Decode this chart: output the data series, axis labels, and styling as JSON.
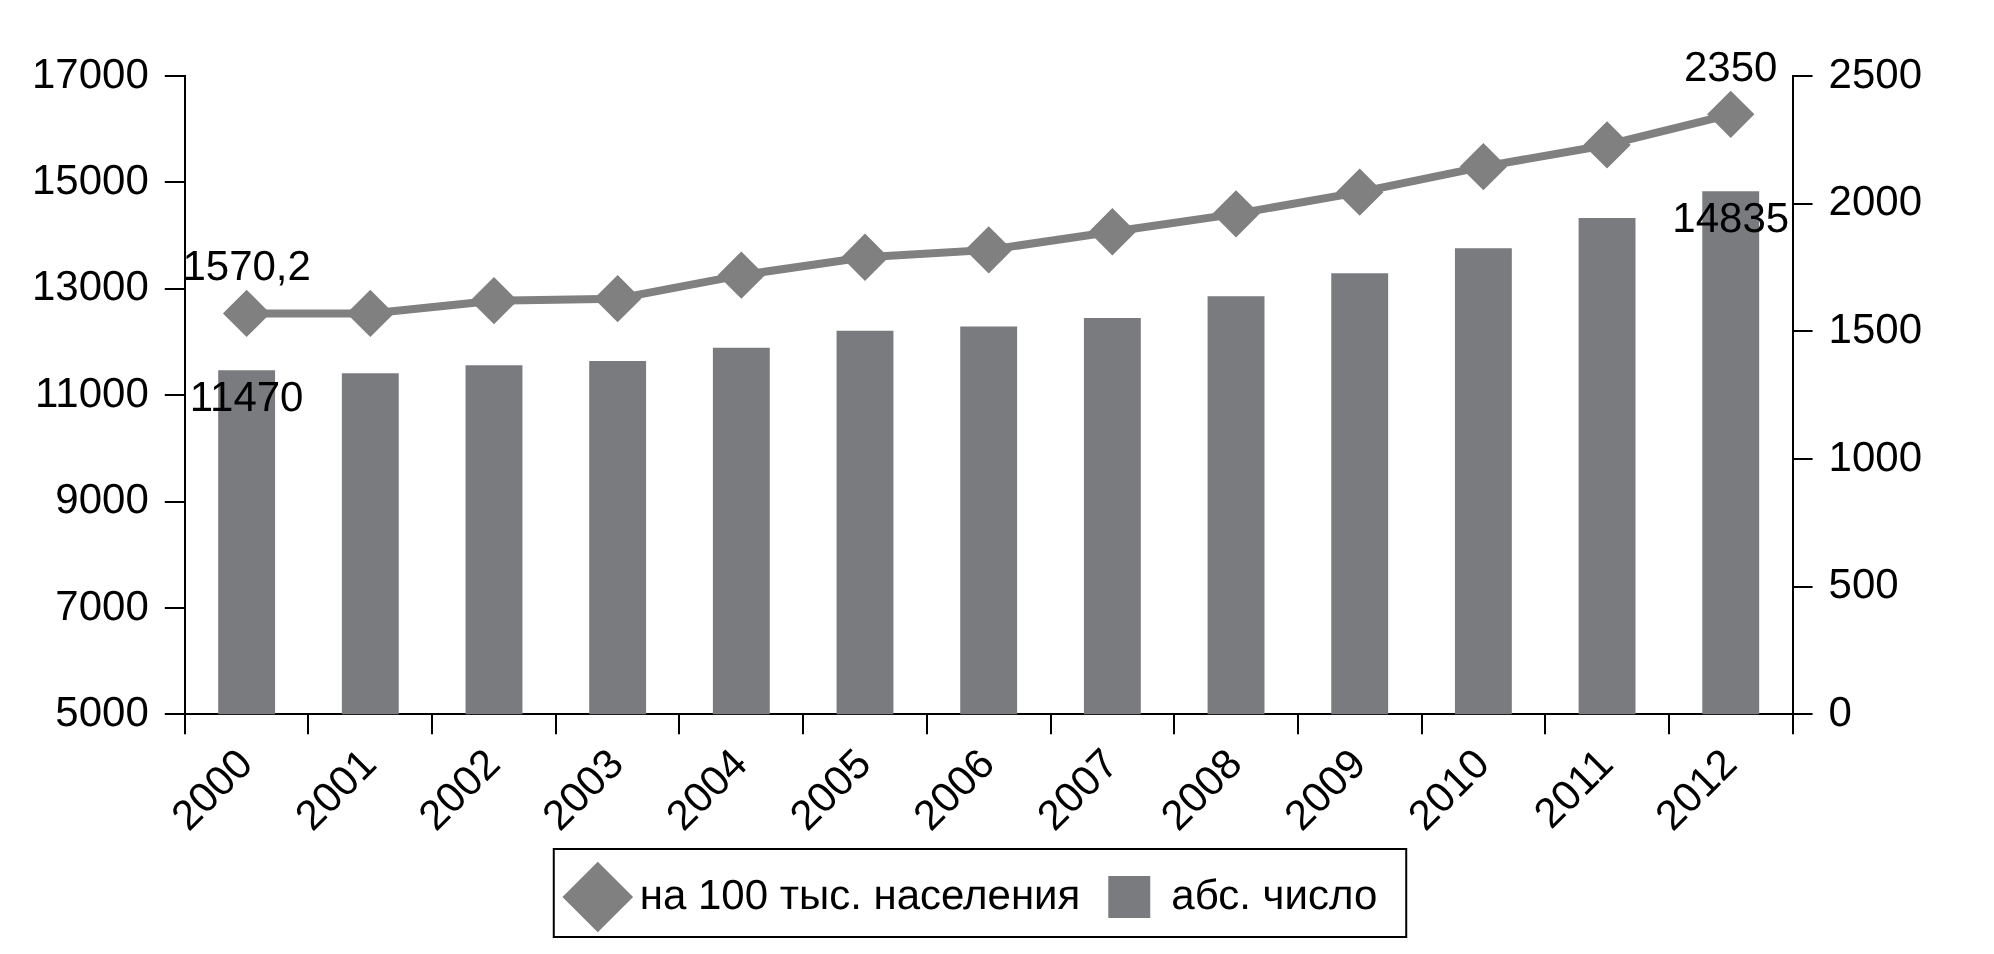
{
  "chart_data": {
    "type": "bar",
    "categories": [
      "2000",
      "2001",
      "2002",
      "2003",
      "2004",
      "2005",
      "2006",
      "2007",
      "2008",
      "2009",
      "2010",
      "2011",
      "2012"
    ],
    "series": [
      {
        "name": "абс. число",
        "color": "#7a7b7f",
        "values": [
          11470,
          11410,
          11560,
          11640,
          11890,
          12210,
          12290,
          12450,
          12860,
          13290,
          13760,
          14330,
          14835
        ],
        "value_labels": [
          "11470",
          null,
          null,
          null,
          null,
          null,
          null,
          null,
          null,
          null,
          null,
          null,
          "14835"
        ]
      },
      {
        "name": "на 100 тыс. населения",
        "type": "line",
        "axis": "y2",
        "color": "#808080",
        "marker": "diamond",
        "values": [
          1570.2,
          1570,
          1620,
          1628,
          1720,
          1790,
          1819,
          1890,
          1960,
          2045,
          2145,
          2230,
          2350
        ],
        "value_labels": [
          "1570,2",
          null,
          null,
          null,
          null,
          null,
          null,
          null,
          null,
          null,
          null,
          null,
          "2350"
        ]
      }
    ],
    "ylim": [
      5000,
      17000
    ],
    "yticks": [
      5000,
      7000,
      9000,
      11000,
      13000,
      15000,
      17000
    ],
    "y2lim": [
      0,
      2500
    ],
    "y2ticks": [
      0,
      500,
      1000,
      1500,
      2000,
      2500
    ],
    "grid": false,
    "legend": "bottom"
  }
}
